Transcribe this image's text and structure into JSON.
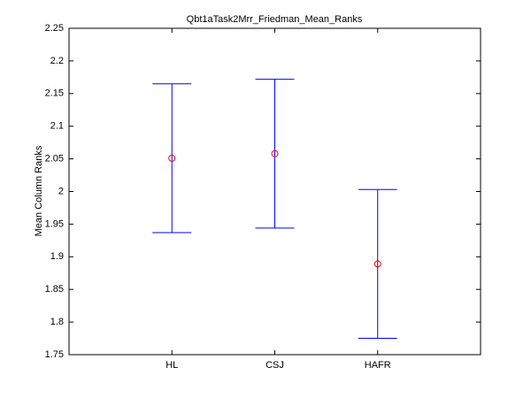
{
  "chart_data": {
    "type": "errorbar",
    "title": "Qbt1aTask2Mrr_Friedman_Mean_Ranks",
    "y_label": "Mean Column Ranks",
    "categories": [
      "HL",
      "CSJ",
      "HAFR"
    ],
    "values": [
      2.051,
      2.058,
      1.889
    ],
    "errors": [
      0.114,
      0.114,
      0.114
    ],
    "color": "#0000ff",
    "marker_color": "#ff0000",
    "ylim": [
      1.75,
      2.25
    ],
    "yticks": [
      1.75,
      1.8,
      1.85,
      1.9,
      1.95,
      2,
      2.05,
      2.1,
      2.15,
      2.2,
      2.25
    ],
    "grid": false
  }
}
